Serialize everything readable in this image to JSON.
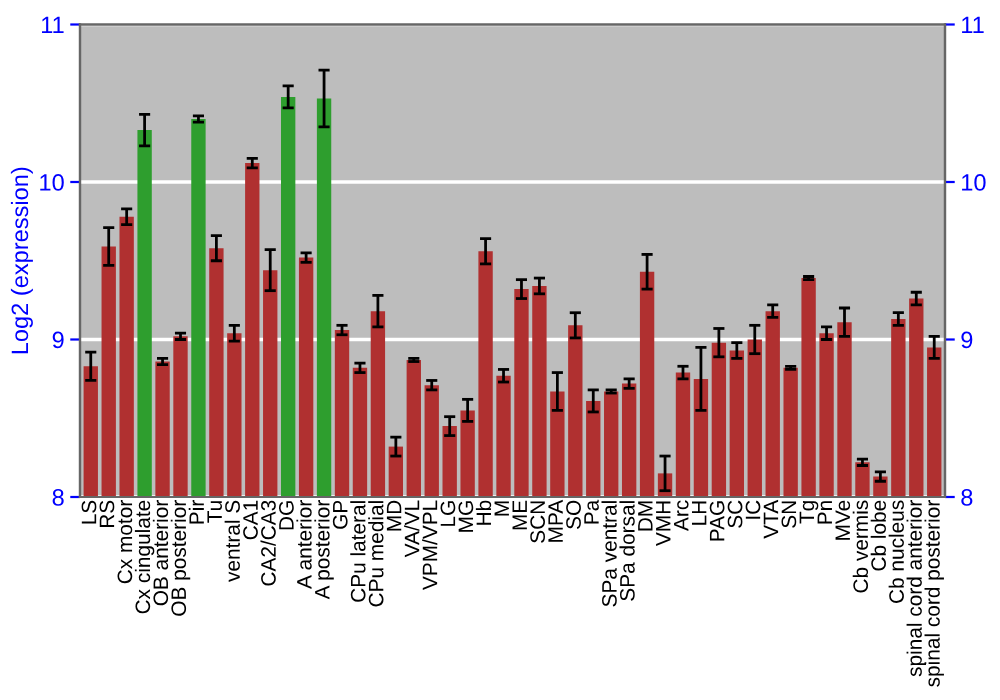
{
  "chart_data": {
    "type": "bar",
    "ylabel": "Log2 (expression)",
    "categories": [
      "LS",
      "RS",
      "Cx motor",
      "Cx cingulate",
      "OB anterior",
      "OB posterior",
      "Pir",
      "Tu",
      "ventral S",
      "CA1",
      "CA2/CA3",
      "DG",
      "A anterior",
      "A posterior",
      "GP",
      "CPu lateral",
      "CPu medial",
      "MD",
      "VA/VL",
      "VPM/VPL",
      "LG",
      "MG",
      "Hb",
      "M",
      "ME",
      "SCN",
      "MPA",
      "SO",
      "Pa",
      "SPa ventral",
      "SPa dorsal",
      "DM",
      "VMH",
      "Arc",
      "LH",
      "PAG",
      "SC",
      "IC",
      "VTA",
      "SN",
      "Tg",
      "Pn",
      "MVe",
      "Cb vermis",
      "Cb lobe",
      "Cb nucleus",
      "spinal cord anterior",
      "spinal cord posterior"
    ],
    "values": [
      8.83,
      9.59,
      9.78,
      10.33,
      8.86,
      9.02,
      10.4,
      9.58,
      9.04,
      10.12,
      9.44,
      10.54,
      9.52,
      10.53,
      9.06,
      8.82,
      9.18,
      8.32,
      8.87,
      8.71,
      8.45,
      8.55,
      9.56,
      8.77,
      9.32,
      9.34,
      8.67,
      9.09,
      8.61,
      8.67,
      8.72,
      9.43,
      8.15,
      8.79,
      8.75,
      8.98,
      8.93,
      9.0,
      9.18,
      8.82,
      9.39,
      9.04,
      9.11,
      8.22,
      8.13,
      9.13,
      9.26,
      8.95
    ],
    "errors": [
      0.09,
      0.12,
      0.05,
      0.1,
      0.02,
      0.02,
      0.02,
      0.08,
      0.05,
      0.03,
      0.13,
      0.07,
      0.03,
      0.18,
      0.03,
      0.03,
      0.1,
      0.06,
      0.01,
      0.03,
      0.06,
      0.07,
      0.08,
      0.04,
      0.06,
      0.05,
      0.12,
      0.08,
      0.07,
      0.01,
      0.03,
      0.11,
      0.11,
      0.04,
      0.2,
      0.09,
      0.05,
      0.09,
      0.04,
      0.01,
      0.01,
      0.04,
      0.09,
      0.02,
      0.03,
      0.04,
      0.04,
      0.07
    ],
    "colors": [
      "#b03030",
      "#b03030",
      "#b03030",
      "#2e9e2e",
      "#b03030",
      "#b03030",
      "#2e9e2e",
      "#b03030",
      "#b03030",
      "#b03030",
      "#b03030",
      "#2e9e2e",
      "#b03030",
      "#2e9e2e",
      "#b03030",
      "#b03030",
      "#b03030",
      "#b03030",
      "#b03030",
      "#b03030",
      "#b03030",
      "#b03030",
      "#b03030",
      "#b03030",
      "#b03030",
      "#b03030",
      "#b03030",
      "#b03030",
      "#b03030",
      "#b03030",
      "#b03030",
      "#b03030",
      "#b03030",
      "#b03030",
      "#b03030",
      "#b03030",
      "#b03030",
      "#b03030",
      "#b03030",
      "#b03030",
      "#b03030",
      "#b03030",
      "#b03030",
      "#b03030",
      "#b03030",
      "#b03030",
      "#b03030",
      "#b03030"
    ],
    "ylim": [
      8,
      11
    ],
    "yticks": [
      8,
      9,
      10,
      11
    ],
    "y2lim": [
      8,
      11
    ],
    "y2ticks": [
      8,
      9,
      10,
      11
    ],
    "grid": "y"
  }
}
